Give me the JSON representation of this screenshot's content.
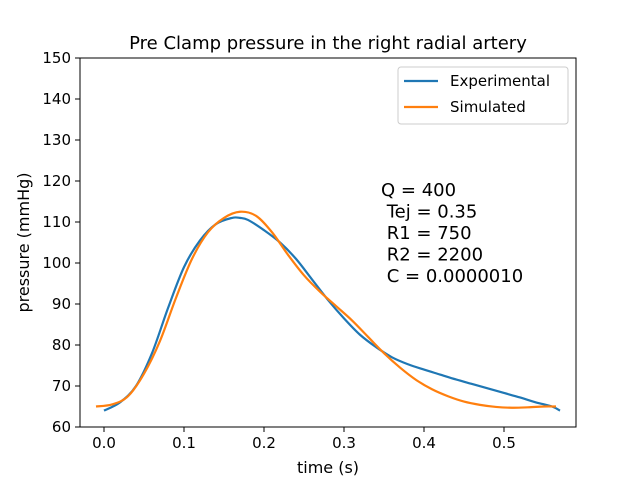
{
  "chart_data": {
    "type": "line",
    "title": "Pre Clamp pressure in the right radial artery",
    "xlabel": "time (s)",
    "ylabel": "pressure (mmHg)",
    "xlim": [
      -0.03,
      0.59
    ],
    "ylim": [
      60,
      150
    ],
    "xticks": [
      0.0,
      0.1,
      0.2,
      0.3,
      0.4,
      0.5
    ],
    "xtick_labels": [
      "0.0",
      "0.1",
      "0.2",
      "0.3",
      "0.4",
      "0.5"
    ],
    "yticks": [
      60,
      70,
      80,
      90,
      100,
      110,
      120,
      130,
      140,
      150
    ],
    "ytick_labels": [
      "60",
      "70",
      "80",
      "90",
      "100",
      "110",
      "120",
      "130",
      "140",
      "150"
    ],
    "grid": false,
    "legend_position": "top-right",
    "series": [
      {
        "name": "Experimental",
        "color": "#1f77b4",
        "x": [
          0.0,
          0.02,
          0.04,
          0.06,
          0.08,
          0.1,
          0.12,
          0.14,
          0.16,
          0.17,
          0.18,
          0.2,
          0.22,
          0.24,
          0.26,
          0.28,
          0.3,
          0.32,
          0.34,
          0.36,
          0.38,
          0.4,
          0.42,
          0.44,
          0.46,
          0.48,
          0.5,
          0.52,
          0.54,
          0.56,
          0.57
        ],
        "y": [
          64,
          66,
          70,
          78,
          89,
          99,
          105.5,
          109.5,
          111,
          111,
          110.5,
          108,
          105,
          101,
          96,
          91,
          86.5,
          82.5,
          79.5,
          77,
          75.3,
          74,
          72.8,
          71.6,
          70.5,
          69.4,
          68.3,
          67.2,
          66,
          65,
          64
        ]
      },
      {
        "name": "Simulated",
        "color": "#ff7f0e",
        "x": [
          -0.01,
          0.01,
          0.03,
          0.05,
          0.07,
          0.09,
          0.11,
          0.13,
          0.15,
          0.17,
          0.19,
          0.21,
          0.23,
          0.25,
          0.27,
          0.29,
          0.31,
          0.33,
          0.35,
          0.37,
          0.39,
          0.41,
          0.43,
          0.45,
          0.47,
          0.49,
          0.51,
          0.53,
          0.55,
          0.565
        ],
        "y": [
          65,
          65.5,
          67.5,
          73,
          81,
          91.5,
          101,
          107.5,
          111,
          112.5,
          111.5,
          107.5,
          102,
          97,
          93,
          89.5,
          86,
          82,
          78,
          74.5,
          71.5,
          69.2,
          67.5,
          66.2,
          65.4,
          64.9,
          64.7,
          64.8,
          65,
          65
        ]
      }
    ],
    "annotation": {
      "lines": [
        "Q = 400",
        " Tej = 0.35",
        " R1 = 750",
        " R2 = 2200",
        " C = 0.0000010"
      ]
    }
  }
}
